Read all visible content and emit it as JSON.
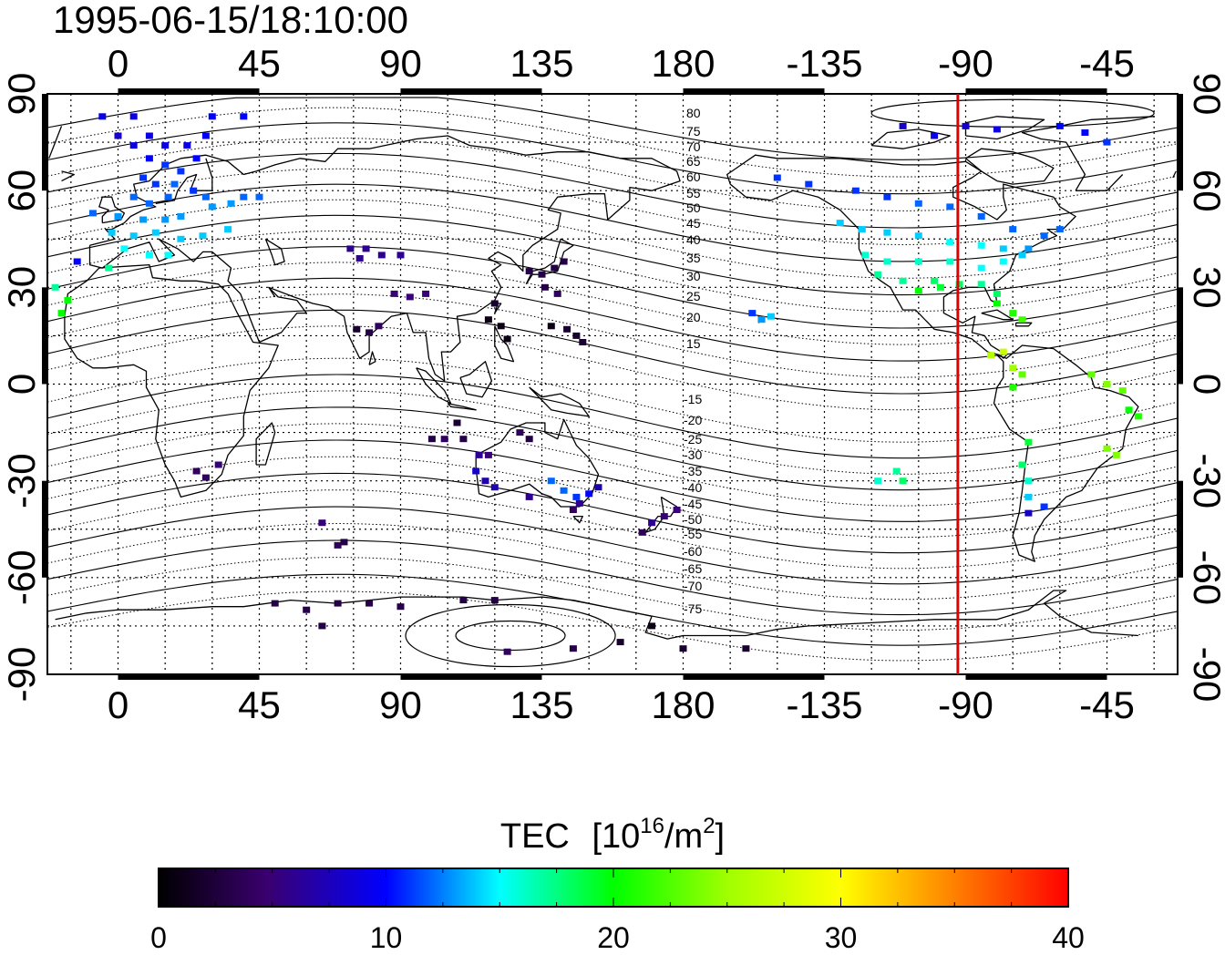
{
  "timestamp": "1995-06-15/18:10:00",
  "axes": {
    "lon_ticks": [
      0,
      45,
      90,
      135,
      180,
      -135,
      -90,
      -45
    ],
    "lon_tick_positions": [
      0,
      45,
      90,
      135,
      180,
      225,
      270,
      315
    ],
    "lon_range": [
      -22.5,
      337.5
    ],
    "lat_ticks": [
      90,
      60,
      30,
      0,
      -30,
      -60,
      -90
    ],
    "lat_range": [
      -90,
      90
    ],
    "grid": true
  },
  "terminator_lon": -92.5,
  "contour_labels_north": [
    "80",
    "75",
    "70",
    "65",
    "60",
    "55",
    "50",
    "45",
    "40",
    "35",
    "30",
    "25",
    "20",
    "15"
  ],
  "contour_labels_south": [
    "-15",
    "-20",
    "-25",
    "-30",
    "-35",
    "-40",
    "-45",
    "-50",
    "-55",
    "-60",
    "-65",
    "-70",
    "-75"
  ],
  "colorbar": {
    "title": "TEC",
    "unit_base": "[10",
    "unit_exp": "16",
    "unit_mid": "/m",
    "unit_exp2": "2",
    "unit_end": "]",
    "ticks": [
      "0",
      "10",
      "20",
      "30",
      "40"
    ],
    "min": 0,
    "max": 40
  },
  "chart_data": {
    "type": "heatmap",
    "xlabel": "",
    "ylabel": "",
    "title": "1995-06-15/18:10:00",
    "colorscale_range": [
      0,
      40
    ],
    "points": [
      {
        "lon": -5,
        "lat": 83,
        "tec": 9
      },
      {
        "lon": 5,
        "lat": 83,
        "tec": 9
      },
      {
        "lon": 30,
        "lat": 83,
        "tec": 10
      },
      {
        "lon": 40,
        "lat": 83,
        "tec": 10
      },
      {
        "lon": 0,
        "lat": 77,
        "tec": 8
      },
      {
        "lon": 10,
        "lat": 77,
        "tec": 9
      },
      {
        "lon": 28,
        "lat": 77,
        "tec": 10
      },
      {
        "lon": 5,
        "lat": 74,
        "tec": 9
      },
      {
        "lon": 15,
        "lat": 74,
        "tec": 9
      },
      {
        "lon": 22,
        "lat": 74,
        "tec": 9
      },
      {
        "lon": 10,
        "lat": 70,
        "tec": 10
      },
      {
        "lon": 15,
        "lat": 68,
        "tec": 11
      },
      {
        "lon": 20,
        "lat": 66,
        "tec": 11
      },
      {
        "lon": 25,
        "lat": 70,
        "tec": 10
      },
      {
        "lon": 8,
        "lat": 64,
        "tec": 11
      },
      {
        "lon": 12,
        "lat": 62,
        "tec": 11
      },
      {
        "lon": 18,
        "lat": 62,
        "tec": 12
      },
      {
        "lon": 24,
        "lat": 60,
        "tec": 11
      },
      {
        "lon": 5,
        "lat": 58,
        "tec": 12
      },
      {
        "lon": 10,
        "lat": 56,
        "tec": 12
      },
      {
        "lon": 16,
        "lat": 58,
        "tec": 12
      },
      {
        "lon": 28,
        "lat": 58,
        "tec": 12
      },
      {
        "lon": -8,
        "lat": 53,
        "tec": 12
      },
      {
        "lon": 0,
        "lat": 52,
        "tec": 13
      },
      {
        "lon": 8,
        "lat": 51,
        "tec": 13
      },
      {
        "lon": 15,
        "lat": 51,
        "tec": 13
      },
      {
        "lon": 20,
        "lat": 52,
        "tec": 13
      },
      {
        "lon": 30,
        "lat": 55,
        "tec": 13
      },
      {
        "lon": 36,
        "lat": 56,
        "tec": 13
      },
      {
        "lon": 40,
        "lat": 58,
        "tec": 12
      },
      {
        "lon": 45,
        "lat": 58,
        "tec": 12
      },
      {
        "lon": -2,
        "lat": 47,
        "tec": 14
      },
      {
        "lon": 5,
        "lat": 46,
        "tec": 14
      },
      {
        "lon": 12,
        "lat": 47,
        "tec": 14
      },
      {
        "lon": 20,
        "lat": 45,
        "tec": 14
      },
      {
        "lon": 27,
        "lat": 46,
        "tec": 14
      },
      {
        "lon": 35,
        "lat": 48,
        "tec": 14
      },
      {
        "lon": 2,
        "lat": 42,
        "tec": 15
      },
      {
        "lon": 10,
        "lat": 40,
        "tec": 15
      },
      {
        "lon": 16,
        "lat": 40,
        "tec": 15
      },
      {
        "lon": -13,
        "lat": 38,
        "tec": 10
      },
      {
        "lon": -3,
        "lat": 36,
        "tec": 17
      },
      {
        "lon": -20,
        "lat": 30,
        "tec": 17
      },
      {
        "lon": -16,
        "lat": 26,
        "tec": 20
      },
      {
        "lon": -18,
        "lat": 22,
        "tec": 20
      },
      {
        "lon": 74,
        "lat": 42,
        "tec": 6
      },
      {
        "lon": 79,
        "lat": 42,
        "tec": 6
      },
      {
        "lon": 84,
        "lat": 40,
        "tec": 6
      },
      {
        "lon": 77,
        "lat": 39,
        "tec": 6
      },
      {
        "lon": 90,
        "lat": 40,
        "tec": 6
      },
      {
        "lon": 88,
        "lat": 28,
        "tec": 5
      },
      {
        "lon": 93,
        "lat": 27,
        "tec": 5
      },
      {
        "lon": 98,
        "lat": 28,
        "tec": 5
      },
      {
        "lon": 76,
        "lat": 17,
        "tec": 2
      },
      {
        "lon": 80,
        "lat": 16,
        "tec": 3
      },
      {
        "lon": 83,
        "lat": 18,
        "tec": 4
      },
      {
        "lon": 120,
        "lat": 25,
        "tec": 2
      },
      {
        "lon": 118,
        "lat": 20,
        "tec": 1
      },
      {
        "lon": 122,
        "lat": 18,
        "tec": 1
      },
      {
        "lon": 124,
        "lat": 14,
        "tec": 1
      },
      {
        "lon": 131,
        "lat": 35,
        "tec": 3
      },
      {
        "lon": 135,
        "lat": 34,
        "tec": 3
      },
      {
        "lon": 139,
        "lat": 36,
        "tec": 3
      },
      {
        "lon": 142,
        "lat": 38,
        "tec": 3
      },
      {
        "lon": 136,
        "lat": 30,
        "tec": 3
      },
      {
        "lon": 140,
        "lat": 28,
        "tec": 4
      },
      {
        "lon": 143,
        "lat": 17,
        "tec": 2
      },
      {
        "lon": 146,
        "lat": 15,
        "tec": 2
      },
      {
        "lon": 138,
        "lat": 18,
        "tec": 1
      },
      {
        "lon": 148,
        "lat": 13,
        "tec": 2
      },
      {
        "lon": 104,
        "lat": -17,
        "tec": 4
      },
      {
        "lon": 110,
        "lat": -17,
        "tec": 3
      },
      {
        "lon": 100,
        "lat": -17,
        "tec": 3
      },
      {
        "lon": 108,
        "lat": -12,
        "tec": 2
      },
      {
        "lon": 115,
        "lat": -22,
        "tec": 6
      },
      {
        "lon": 118,
        "lat": -22,
        "tec": 5
      },
      {
        "lon": 128,
        "lat": -15,
        "tec": 4
      },
      {
        "lon": 131,
        "lat": -17,
        "tec": 3
      },
      {
        "lon": 114,
        "lat": -27,
        "tec": 8
      },
      {
        "lon": 117,
        "lat": -30,
        "tec": 7
      },
      {
        "lon": 120,
        "lat": -32,
        "tec": 7
      },
      {
        "lon": 138,
        "lat": -30,
        "tec": 12
      },
      {
        "lon": 142,
        "lat": -33,
        "tec": 12
      },
      {
        "lon": 146,
        "lat": -35,
        "tec": 11
      },
      {
        "lon": 150,
        "lat": -34,
        "tec": 10
      },
      {
        "lon": 147,
        "lat": -37,
        "tec": 6
      },
      {
        "lon": 153,
        "lat": -32,
        "tec": 7
      },
      {
        "lon": 131,
        "lat": -35,
        "tec": 6
      },
      {
        "lon": 145,
        "lat": -39,
        "tec": 4
      },
      {
        "lon": 170,
        "lat": -43,
        "tec": 6
      },
      {
        "lon": 174,
        "lat": -41,
        "tec": 5
      },
      {
        "lon": 167,
        "lat": -46,
        "tec": 4
      },
      {
        "lon": 178,
        "lat": -39,
        "tec": 5
      },
      {
        "lon": 25,
        "lat": -27,
        "tec": 4
      },
      {
        "lon": 28,
        "lat": -29,
        "tec": 4
      },
      {
        "lon": 32,
        "lat": -25,
        "tec": 5
      },
      {
        "lon": 70,
        "lat": -50,
        "tec": 4
      },
      {
        "lon": 72,
        "lat": -49,
        "tec": 3
      },
      {
        "lon": 65,
        "lat": -43,
        "tec": 5
      },
      {
        "lon": 50,
        "lat": -68,
        "tec": 3
      },
      {
        "lon": 60,
        "lat": -70,
        "tec": 3
      },
      {
        "lon": 70,
        "lat": -68,
        "tec": 3
      },
      {
        "lon": 80,
        "lat": -68,
        "tec": 3
      },
      {
        "lon": 65,
        "lat": -75,
        "tec": 3
      },
      {
        "lon": 90,
        "lat": -69,
        "tec": 3
      },
      {
        "lon": 110,
        "lat": -67,
        "tec": 3
      },
      {
        "lon": 120,
        "lat": -67,
        "tec": 3
      },
      {
        "lon": 124,
        "lat": -83,
        "tec": 4
      },
      {
        "lon": 145,
        "lat": -82,
        "tec": 3
      },
      {
        "lon": 160,
        "lat": -80,
        "tec": 2
      },
      {
        "lon": 170,
        "lat": -75,
        "tec": 1
      },
      {
        "lon": 180,
        "lat": -82,
        "tec": 2
      },
      {
        "lon": 200,
        "lat": -82,
        "tec": 2
      },
      {
        "lon": -110,
        "lat": 80,
        "tec": 8
      },
      {
        "lon": -100,
        "lat": 77,
        "tec": 9
      },
      {
        "lon": -90,
        "lat": 80,
        "tec": 8
      },
      {
        "lon": -80,
        "lat": 79,
        "tec": 9
      },
      {
        "lon": -60,
        "lat": 80,
        "tec": 10
      },
      {
        "lon": -45,
        "lat": 75,
        "tec": 11
      },
      {
        "lon": -52,
        "lat": 78,
        "tec": 10
      },
      {
        "lon": -150,
        "lat": 64,
        "tec": 11
      },
      {
        "lon": -140,
        "lat": 62,
        "tec": 11
      },
      {
        "lon": -125,
        "lat": 60,
        "tec": 11
      },
      {
        "lon": -115,
        "lat": 58,
        "tec": 11
      },
      {
        "lon": -105,
        "lat": 56,
        "tec": 12
      },
      {
        "lon": -95,
        "lat": 55,
        "tec": 12
      },
      {
        "lon": -85,
        "lat": 52,
        "tec": 12
      },
      {
        "lon": -75,
        "lat": 48,
        "tec": 12
      },
      {
        "lon": -65,
        "lat": 46,
        "tec": 12
      },
      {
        "lon": -60,
        "lat": 48,
        "tec": 12
      },
      {
        "lon": -130,
        "lat": 50,
        "tec": 14
      },
      {
        "lon": -123,
        "lat": 48,
        "tec": 14
      },
      {
        "lon": -115,
        "lat": 47,
        "tec": 14
      },
      {
        "lon": -105,
        "lat": 46,
        "tec": 14
      },
      {
        "lon": -95,
        "lat": 44,
        "tec": 15
      },
      {
        "lon": -85,
        "lat": 43,
        "tec": 15
      },
      {
        "lon": -78,
        "lat": 42,
        "tec": 14
      },
      {
        "lon": -70,
        "lat": 42,
        "tec": 13
      },
      {
        "lon": -122,
        "lat": 40,
        "tec": 16
      },
      {
        "lon": -115,
        "lat": 38,
        "tec": 16
      },
      {
        "lon": -105,
        "lat": 38,
        "tec": 16
      },
      {
        "lon": -95,
        "lat": 38,
        "tec": 16
      },
      {
        "lon": -85,
        "lat": 36,
        "tec": 15
      },
      {
        "lon": -78,
        "lat": 38,
        "tec": 15
      },
      {
        "lon": -72,
        "lat": 40,
        "tec": 14
      },
      {
        "lon": -118,
        "lat": 34,
        "tec": 17
      },
      {
        "lon": -110,
        "lat": 32,
        "tec": 17
      },
      {
        "lon": -100,
        "lat": 32,
        "tec": 18
      },
      {
        "lon": -92,
        "lat": 31,
        "tec": 18
      },
      {
        "lon": -85,
        "lat": 31,
        "tec": 17
      },
      {
        "lon": -80,
        "lat": 28,
        "tec": 18
      },
      {
        "lon": -98,
        "lat": 30,
        "tec": 19
      },
      {
        "lon": -105,
        "lat": 29,
        "tec": 20
      },
      {
        "lon": -80,
        "lat": 25,
        "tec": 20
      },
      {
        "lon": -75,
        "lat": 22,
        "tec": 21
      },
      {
        "lon": -72,
        "lat": 20,
        "tec": 22
      },
      {
        "lon": -158,
        "lat": 22,
        "tec": 11
      },
      {
        "lon": -155,
        "lat": 20,
        "tec": 13
      },
      {
        "lon": -152,
        "lat": 21,
        "tec": 14
      },
      {
        "lon": -78,
        "lat": 10,
        "tec": 27
      },
      {
        "lon": -82,
        "lat": 9,
        "tec": 26
      },
      {
        "lon": -75,
        "lat": 5,
        "tec": 25
      },
      {
        "lon": -72,
        "lat": 3,
        "tec": 23
      },
      {
        "lon": -75,
        "lat": -1,
        "tec": 21
      },
      {
        "lon": -50,
        "lat": 3,
        "tec": 23
      },
      {
        "lon": -45,
        "lat": 0,
        "tec": 24
      },
      {
        "lon": -40,
        "lat": -2,
        "tec": 23
      },
      {
        "lon": -38,
        "lat": -8,
        "tec": 20
      },
      {
        "lon": -35,
        "lat": -10,
        "tec": 21
      },
      {
        "lon": -45,
        "lat": -20,
        "tec": 24
      },
      {
        "lon": -42,
        "lat": -22,
        "tec": 24
      },
      {
        "lon": -70,
        "lat": -18,
        "tec": 19
      },
      {
        "lon": -72,
        "lat": -25,
        "tec": 18
      },
      {
        "lon": -70,
        "lat": -30,
        "tec": 16
      },
      {
        "lon": -70,
        "lat": -35,
        "tec": 14
      },
      {
        "lon": -70,
        "lat": -40,
        "tec": 8
      },
      {
        "lon": -65,
        "lat": -38,
        "tec": 11
      },
      {
        "lon": -112,
        "lat": -27,
        "tec": 17
      },
      {
        "lon": -110,
        "lat": -30,
        "tec": 18
      },
      {
        "lon": -118,
        "lat": -30,
        "tec": 16
      }
    ]
  }
}
